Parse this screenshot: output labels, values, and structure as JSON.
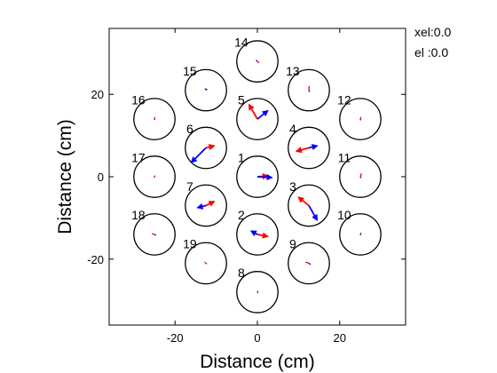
{
  "readout": {
    "xel": "xel:0.0",
    "el": "el :0.0"
  },
  "chart_data": {
    "type": "scatter",
    "title": "",
    "xlabel": "Distance (cm)",
    "ylabel": "Distance (cm)",
    "xlim": [
      -36,
      36
    ],
    "ylim": [
      -36,
      36
    ],
    "xticks": [
      {
        "value": -20,
        "label": "-20"
      },
      {
        "value": 0,
        "label": "0"
      },
      {
        "value": 20,
        "label": "20"
      }
    ],
    "yticks": [
      {
        "value": 20,
        "label": "20"
      },
      {
        "value": 0,
        "label": "0"
      },
      {
        "value": -20,
        "label": "-20"
      }
    ],
    "grid": false,
    "circle_radius_cm": 5,
    "colors": {
      "series_a": "#ff0000",
      "series_b": "#0000ff",
      "circle": "#000000"
    },
    "beams": [
      {
        "id": "1",
        "x": 0,
        "y": 0,
        "red": [
          2.5,
          0.2
        ],
        "blue": [
          3.5,
          -0.2
        ]
      },
      {
        "id": "2",
        "x": 0,
        "y": -14,
        "red": [
          2.5,
          -0.5
        ],
        "blue": [
          -1.5,
          0.8
        ]
      },
      {
        "id": "3",
        "x": 12.5,
        "y": -7,
        "red": [
          -2.5,
          2.0
        ],
        "blue": [
          2.0,
          -3.5
        ]
      },
      {
        "id": "4",
        "x": 12.5,
        "y": 7,
        "red": [
          -3.0,
          -0.8
        ],
        "blue": [
          2.0,
          0.5
        ]
      },
      {
        "id": "5",
        "x": 0,
        "y": 14,
        "red": [
          -2.0,
          3.5
        ],
        "blue": [
          2.5,
          2.0
        ]
      },
      {
        "id": "6",
        "x": -12.5,
        "y": 7,
        "red": [
          2.0,
          0.5
        ],
        "blue": [
          -3.5,
          -3.5
        ]
      },
      {
        "id": "7",
        "x": -12.5,
        "y": -7,
        "red": [
          2.0,
          1.0
        ],
        "blue": [
          -2.0,
          -0.5
        ]
      },
      {
        "id": "8",
        "x": 0,
        "y": -28,
        "red": [
          0.2,
          0.3
        ],
        "blue": [
          0.1,
          -0.2
        ]
      },
      {
        "id": "9",
        "x": 12.5,
        "y": -21,
        "red": [
          -0.8,
          0.3
        ],
        "blue": [
          0.4,
          -0.3
        ]
      },
      {
        "id": "10",
        "x": 25,
        "y": -14,
        "red": [
          0.2,
          0.4
        ],
        "blue": [
          0.1,
          -0.2
        ]
      },
      {
        "id": "11",
        "x": 25,
        "y": 0,
        "red": [
          0.3,
          0.8
        ],
        "blue": [
          0.2,
          -0.3
        ]
      },
      {
        "id": "12",
        "x": 25,
        "y": 14,
        "red": [
          0.2,
          0.5
        ],
        "blue": [
          0.1,
          -0.3
        ]
      },
      {
        "id": "13",
        "x": 12.5,
        "y": 21,
        "red": [
          0.1,
          1.0
        ],
        "blue": [
          0.2,
          -0.4
        ]
      },
      {
        "id": "14",
        "x": 0,
        "y": 28,
        "red": [
          0.4,
          -0.4
        ],
        "blue": [
          -0.3,
          0.3
        ]
      },
      {
        "id": "15",
        "x": -12.5,
        "y": 21,
        "red": [
          -0.2,
          0.5
        ],
        "blue": [
          0.3,
          0.3
        ]
      },
      {
        "id": "16",
        "x": -25,
        "y": 14,
        "red": [
          0.1,
          0.5
        ],
        "blue": [
          0.1,
          -0.2
        ]
      },
      {
        "id": "17",
        "x": -25,
        "y": 0,
        "red": [
          0.1,
          0.3
        ],
        "blue": [
          0.0,
          -0.2
        ]
      },
      {
        "id": "18",
        "x": -25,
        "y": -14,
        "red": [
          -0.6,
          0.2
        ],
        "blue": [
          0.4,
          -0.2
        ]
      },
      {
        "id": "19",
        "x": -12.5,
        "y": -21,
        "red": [
          -0.3,
          0.3
        ],
        "blue": [
          0.2,
          -0.2
        ]
      }
    ]
  }
}
